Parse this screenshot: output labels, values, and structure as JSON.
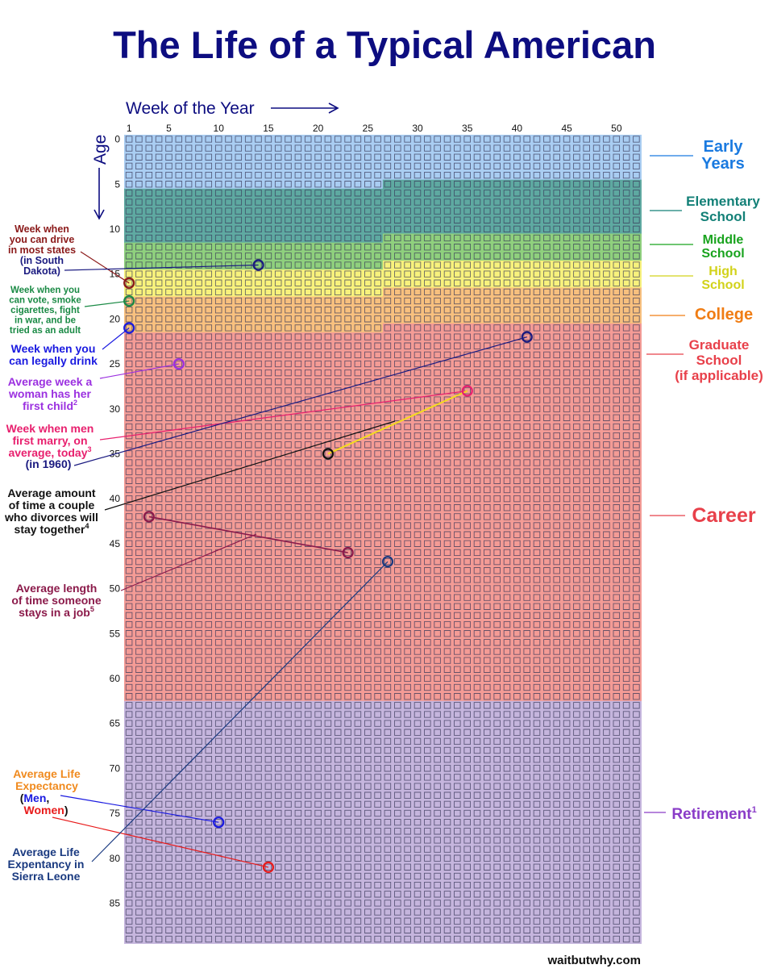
{
  "chart_data": {
    "type": "heatmap",
    "title": "The Life of a Typical American",
    "xlabel": "Week of the Year",
    "ylabel": "Age",
    "x_ticks": [
      1,
      5,
      10,
      15,
      20,
      25,
      30,
      35,
      40,
      45,
      50
    ],
    "y_ticks": [
      0,
      5,
      10,
      15,
      20,
      25,
      30,
      35,
      40,
      45,
      50,
      55,
      60,
      65,
      70,
      75,
      80,
      85
    ],
    "weeks": 52,
    "ages": 90,
    "grid": true,
    "phases": [
      {
        "label_lines": [
          "Early",
          "Years"
        ],
        "color": "#a9cdf2",
        "text_color": "#1a7ae0",
        "start": {
          "age": 0,
          "week": 1
        },
        "end": {
          "age": 5,
          "week": 26
        }
      },
      {
        "label_lines": [
          "Elementary",
          "School"
        ],
        "color": "#5ea9a1",
        "text_color": "#138077",
        "start": {
          "age": 5,
          "week": 27
        },
        "end": {
          "age": 11,
          "week": 26
        }
      },
      {
        "label_lines": [
          "Middle",
          "School"
        ],
        "color": "#8fd07d",
        "text_color": "#19a31e",
        "start": {
          "age": 11,
          "week": 27
        },
        "end": {
          "age": 14,
          "week": 26
        }
      },
      {
        "label_lines": [
          "High",
          "School"
        ],
        "color": "#f8f27c",
        "text_color": "#d2d21a",
        "start": {
          "age": 14,
          "week": 27
        },
        "end": {
          "age": 17,
          "week": 26
        }
      },
      {
        "label_lines": [
          "College"
        ],
        "color": "#f8c07e",
        "text_color": "#f07d14",
        "start": {
          "age": 17,
          "week": 27
        },
        "end": {
          "age": 21,
          "week": 26
        }
      },
      {
        "label_lines": [
          "Graduate",
          "School",
          "(if applicable)"
        ],
        "color": "#f49b95",
        "text_color": "#e8404a",
        "start": {
          "age": 21,
          "week": 27
        },
        "end": {
          "age": 62,
          "week": 52
        }
      },
      {
        "label_lines": [
          "Career"
        ],
        "color": "#f49b95",
        "text_color": "#e8404a",
        "start": null,
        "end": null
      },
      {
        "label_lines": [
          "Retirement"
        ],
        "footnote": "1",
        "color": "#c5b5dd",
        "text_color": "#8a3cc8",
        "start": {
          "age": 63,
          "week": 1
        },
        "end": {
          "age": 89,
          "week": 52
        }
      }
    ],
    "annotations": [
      {
        "label_lines": [
          "Week when",
          "you can drive",
          "in most states"
        ],
        "color": "#8b1a1a",
        "markers": [
          {
            "age": 16,
            "week": 1
          }
        ]
      },
      {
        "label_lines": [
          "(in South",
          "Dakota)"
        ],
        "color": "#1a1a80",
        "markers": [
          {
            "age": 14,
            "week": 14
          }
        ]
      },
      {
        "label_lines": [
          "Week when you",
          "can vote, smoke",
          "cigarettes, fight",
          "in war, and be",
          "tried as an adult"
        ],
        "color": "#1a8a45",
        "markers": [
          {
            "age": 18,
            "week": 1
          }
        ]
      },
      {
        "label_lines": [
          "Week when you",
          "can legally drink"
        ],
        "color": "#1a1ae0",
        "markers": [
          {
            "age": 21,
            "week": 1
          }
        ]
      },
      {
        "label_lines": [
          "Average week a",
          "woman has her",
          "first child"
        ],
        "footnote": "2",
        "color": "#9b30e0",
        "markers": [
          {
            "age": 25,
            "week": 6
          }
        ]
      },
      {
        "label_lines": [
          "Week when men",
          "first marry, on",
          "average, today"
        ],
        "footnote": "3",
        "color": "#e8206e",
        "markers": [
          {
            "age": 28,
            "week": 35
          }
        ]
      },
      {
        "label_lines": [
          "(in 1960)"
        ],
        "color": "#1a1a80",
        "markers": [
          {
            "age": 22,
            "week": 41
          }
        ]
      },
      {
        "label_lines": [
          "Average amount",
          "of time a couple",
          "who divorces will",
          "stay together"
        ],
        "footnote": "4",
        "color": "#111111",
        "connector_color": "#f5dc1e",
        "markers": [
          {
            "age": 35,
            "week": 21
          }
        ]
      },
      {
        "label_lines": [
          "Average length",
          "of time someone",
          "stays in a job"
        ],
        "footnote": "5",
        "color": "#8b1a4a",
        "markers": [
          {
            "age": 42,
            "week": 3
          },
          {
            "age": 46,
            "week": 23
          }
        ]
      },
      {
        "label_lines": [
          "Average Life",
          "Expectancy"
        ],
        "color": "#f08a1e",
        "markers": []
      },
      {
        "label_lines": [
          "Men"
        ],
        "color": "#1a1ae0",
        "markers": [
          {
            "age": 76,
            "week": 10
          }
        ]
      },
      {
        "label_lines": [
          "Women"
        ],
        "color": "#e81a1a",
        "markers": [
          {
            "age": 81,
            "week": 15
          }
        ]
      },
      {
        "label_lines": [
          "Average Life",
          "Expentancy in",
          "Sierra Leone"
        ],
        "color": "#1a3a80",
        "markers": [
          {
            "age": 47,
            "week": 27
          }
        ]
      }
    ],
    "title_color": "#0d0d80",
    "source": "waitbutwhy.com"
  },
  "symbols": {
    "open_paren": "(",
    "comma": ",",
    "close_paren": ")"
  }
}
